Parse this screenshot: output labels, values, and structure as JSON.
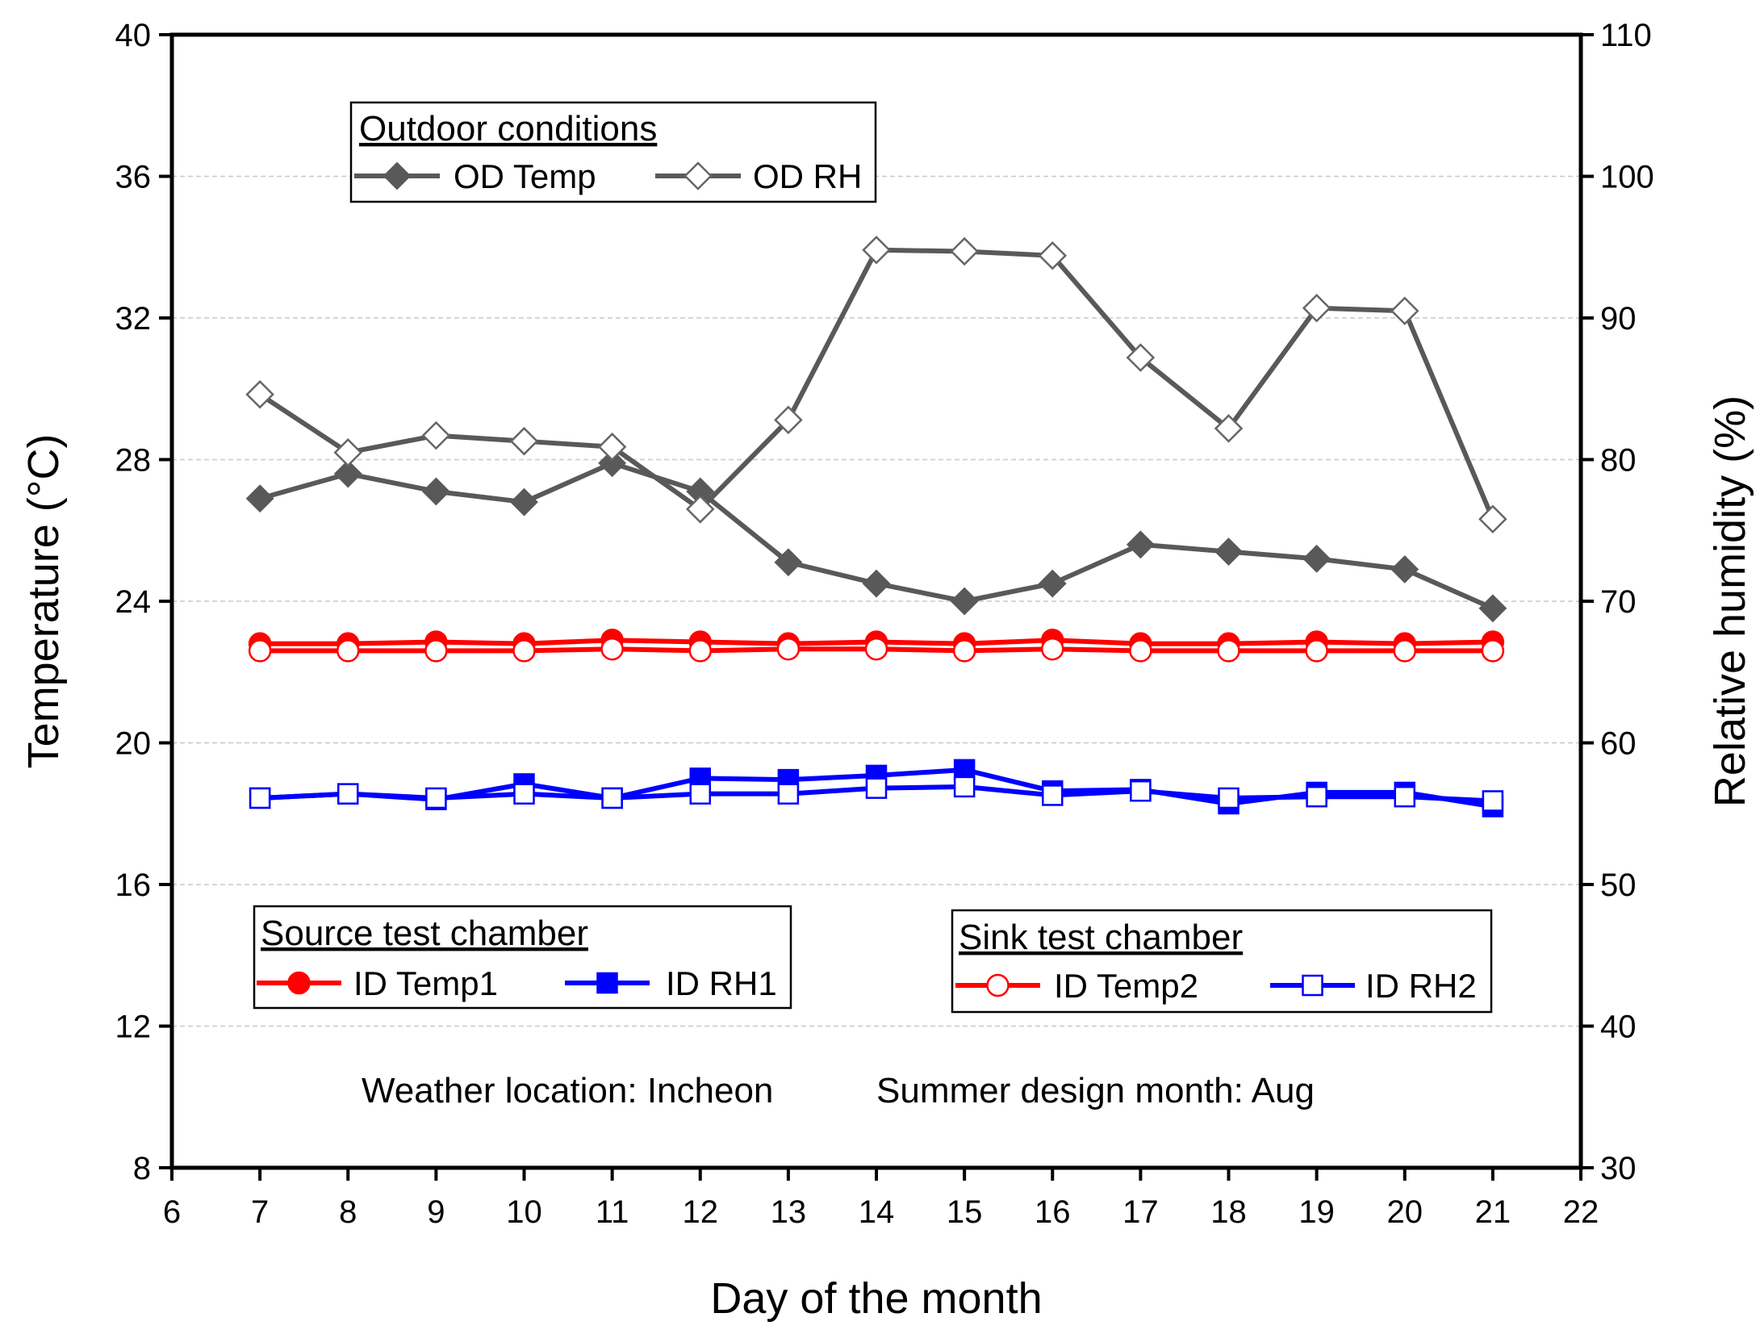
{
  "chart_data": {
    "type": "line",
    "title": "",
    "xlabel": "Day of the month",
    "ylabel": "Temperature (°C)",
    "y2label": "Relative humidity (%)",
    "xlim": [
      6,
      22
    ],
    "ylim": [
      8,
      40
    ],
    "y2lim": [
      30,
      110
    ],
    "xticks": [
      "6",
      "7",
      "8",
      "9",
      "10",
      "11",
      "12",
      "13",
      "14",
      "15",
      "16",
      "17",
      "18",
      "19",
      "20",
      "21",
      "22"
    ],
    "yticks": [
      "8",
      "12",
      "16",
      "20",
      "24",
      "28",
      "32",
      "36",
      "40"
    ],
    "y2ticks": [
      "30",
      "40",
      "50",
      "60",
      "70",
      "80",
      "90",
      "100",
      "110"
    ],
    "grid": "horizontal dashed",
    "x": [
      7,
      8,
      9,
      10,
      11,
      12,
      13,
      14,
      15,
      16,
      17,
      18,
      19,
      20,
      21
    ],
    "series": [
      {
        "name": "OD Temp",
        "axis": "left",
        "color": "#595959",
        "marker": "diamond-filled",
        "values": [
          26.9,
          27.6,
          27.1,
          26.8,
          27.9,
          27.1,
          25.1,
          24.5,
          24.0,
          24.5,
          25.6,
          25.4,
          25.2,
          24.9,
          23.8
        ]
      },
      {
        "name": "OD RH",
        "axis": "right",
        "color": "#595959",
        "marker": "diamond-open",
        "values": [
          84.6,
          80.5,
          81.7,
          81.3,
          80.9,
          76.5,
          82.8,
          94.8,
          94.7,
          94.4,
          87.2,
          82.2,
          90.7,
          90.5,
          75.8
        ]
      },
      {
        "name": "ID Temp1",
        "axis": "left",
        "color": "#ff0000",
        "marker": "circle-filled",
        "values": [
          22.8,
          22.8,
          22.85,
          22.8,
          22.9,
          22.85,
          22.8,
          22.85,
          22.8,
          22.9,
          22.8,
          22.8,
          22.85,
          22.8,
          22.85
        ]
      },
      {
        "name": "ID Temp2",
        "axis": "left",
        "color": "#ff0000",
        "marker": "circle-open",
        "values": [
          22.6,
          22.6,
          22.6,
          22.6,
          22.65,
          22.6,
          22.65,
          22.65,
          22.6,
          22.65,
          22.6,
          22.6,
          22.6,
          22.6,
          22.6
        ]
      },
      {
        "name": "ID RH1",
        "axis": "right",
        "color": "#0000ff",
        "marker": "square-filled",
        "values": [
          56.1,
          56.4,
          56.0,
          57.1,
          56.1,
          57.5,
          57.4,
          57.7,
          58.1,
          56.6,
          56.7,
          55.7,
          56.5,
          56.5,
          55.5
        ]
      },
      {
        "name": "ID RH2",
        "axis": "right",
        "color": "#0000ff",
        "marker": "square-open",
        "values": [
          56.1,
          56.4,
          56.1,
          56.4,
          56.1,
          56.4,
          56.4,
          56.8,
          56.9,
          56.3,
          56.6,
          56.1,
          56.2,
          56.2,
          55.9
        ]
      }
    ],
    "legends": [
      {
        "title": "Outdoor conditions",
        "entries": [
          "OD Temp",
          "OD RH"
        ]
      },
      {
        "title": "Source test chamber",
        "entries": [
          "ID Temp1",
          "ID RH1"
        ]
      },
      {
        "title": "Sink test chamber",
        "entries": [
          "ID Temp2",
          "ID RH2"
        ]
      }
    ],
    "annotations": [
      "Weather location: Incheon",
      "Summer design month: Aug"
    ]
  }
}
